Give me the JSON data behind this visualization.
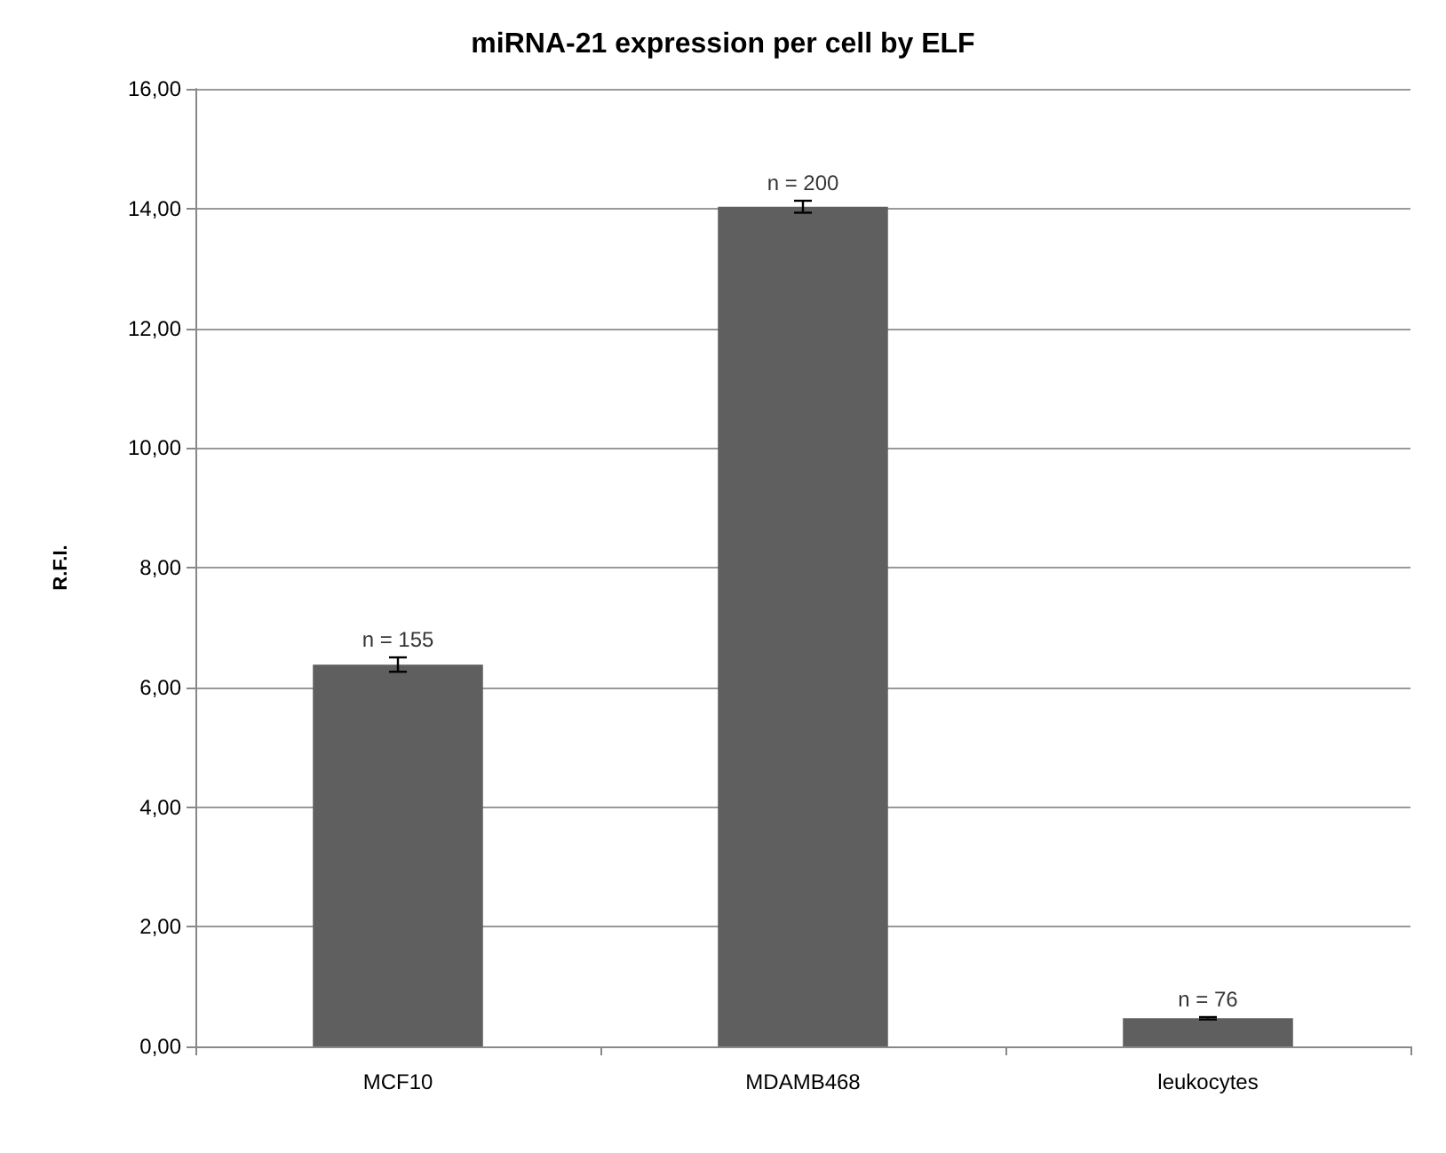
{
  "chart_data": {
    "type": "bar",
    "title": "miRNA-21 expression per cell by ELF",
    "ylabel": "R.F.I.",
    "categories": [
      "MCF10",
      "MDAMB468",
      "leukocytes"
    ],
    "values": [
      6.38,
      14.03,
      0.47
    ],
    "errors": [
      0.12,
      0.1,
      0.02
    ],
    "color": "#5f5f5f",
    "ylim": [
      0,
      16
    ],
    "yticks": [
      {
        "value": 0,
        "label": "0,00"
      },
      {
        "value": 2,
        "label": "2,00"
      },
      {
        "value": 4,
        "label": "4,00"
      },
      {
        "value": 6,
        "label": "6,00"
      },
      {
        "value": 8,
        "label": "8,00"
      },
      {
        "value": 10,
        "label": "10,00"
      },
      {
        "value": 12,
        "label": "12,00"
      },
      {
        "value": 14,
        "label": "14,00"
      },
      {
        "value": 16,
        "label": "16,00"
      }
    ],
    "grid": "y",
    "annotations": [
      {
        "text": "n = 155",
        "x": "MCF10",
        "y": 6.38
      },
      {
        "text": "n = 200",
        "x": "MDAMB468",
        "y": 14.03
      },
      {
        "text": "n = 76",
        "x": "leukocytes",
        "y": 0.47
      }
    ]
  }
}
